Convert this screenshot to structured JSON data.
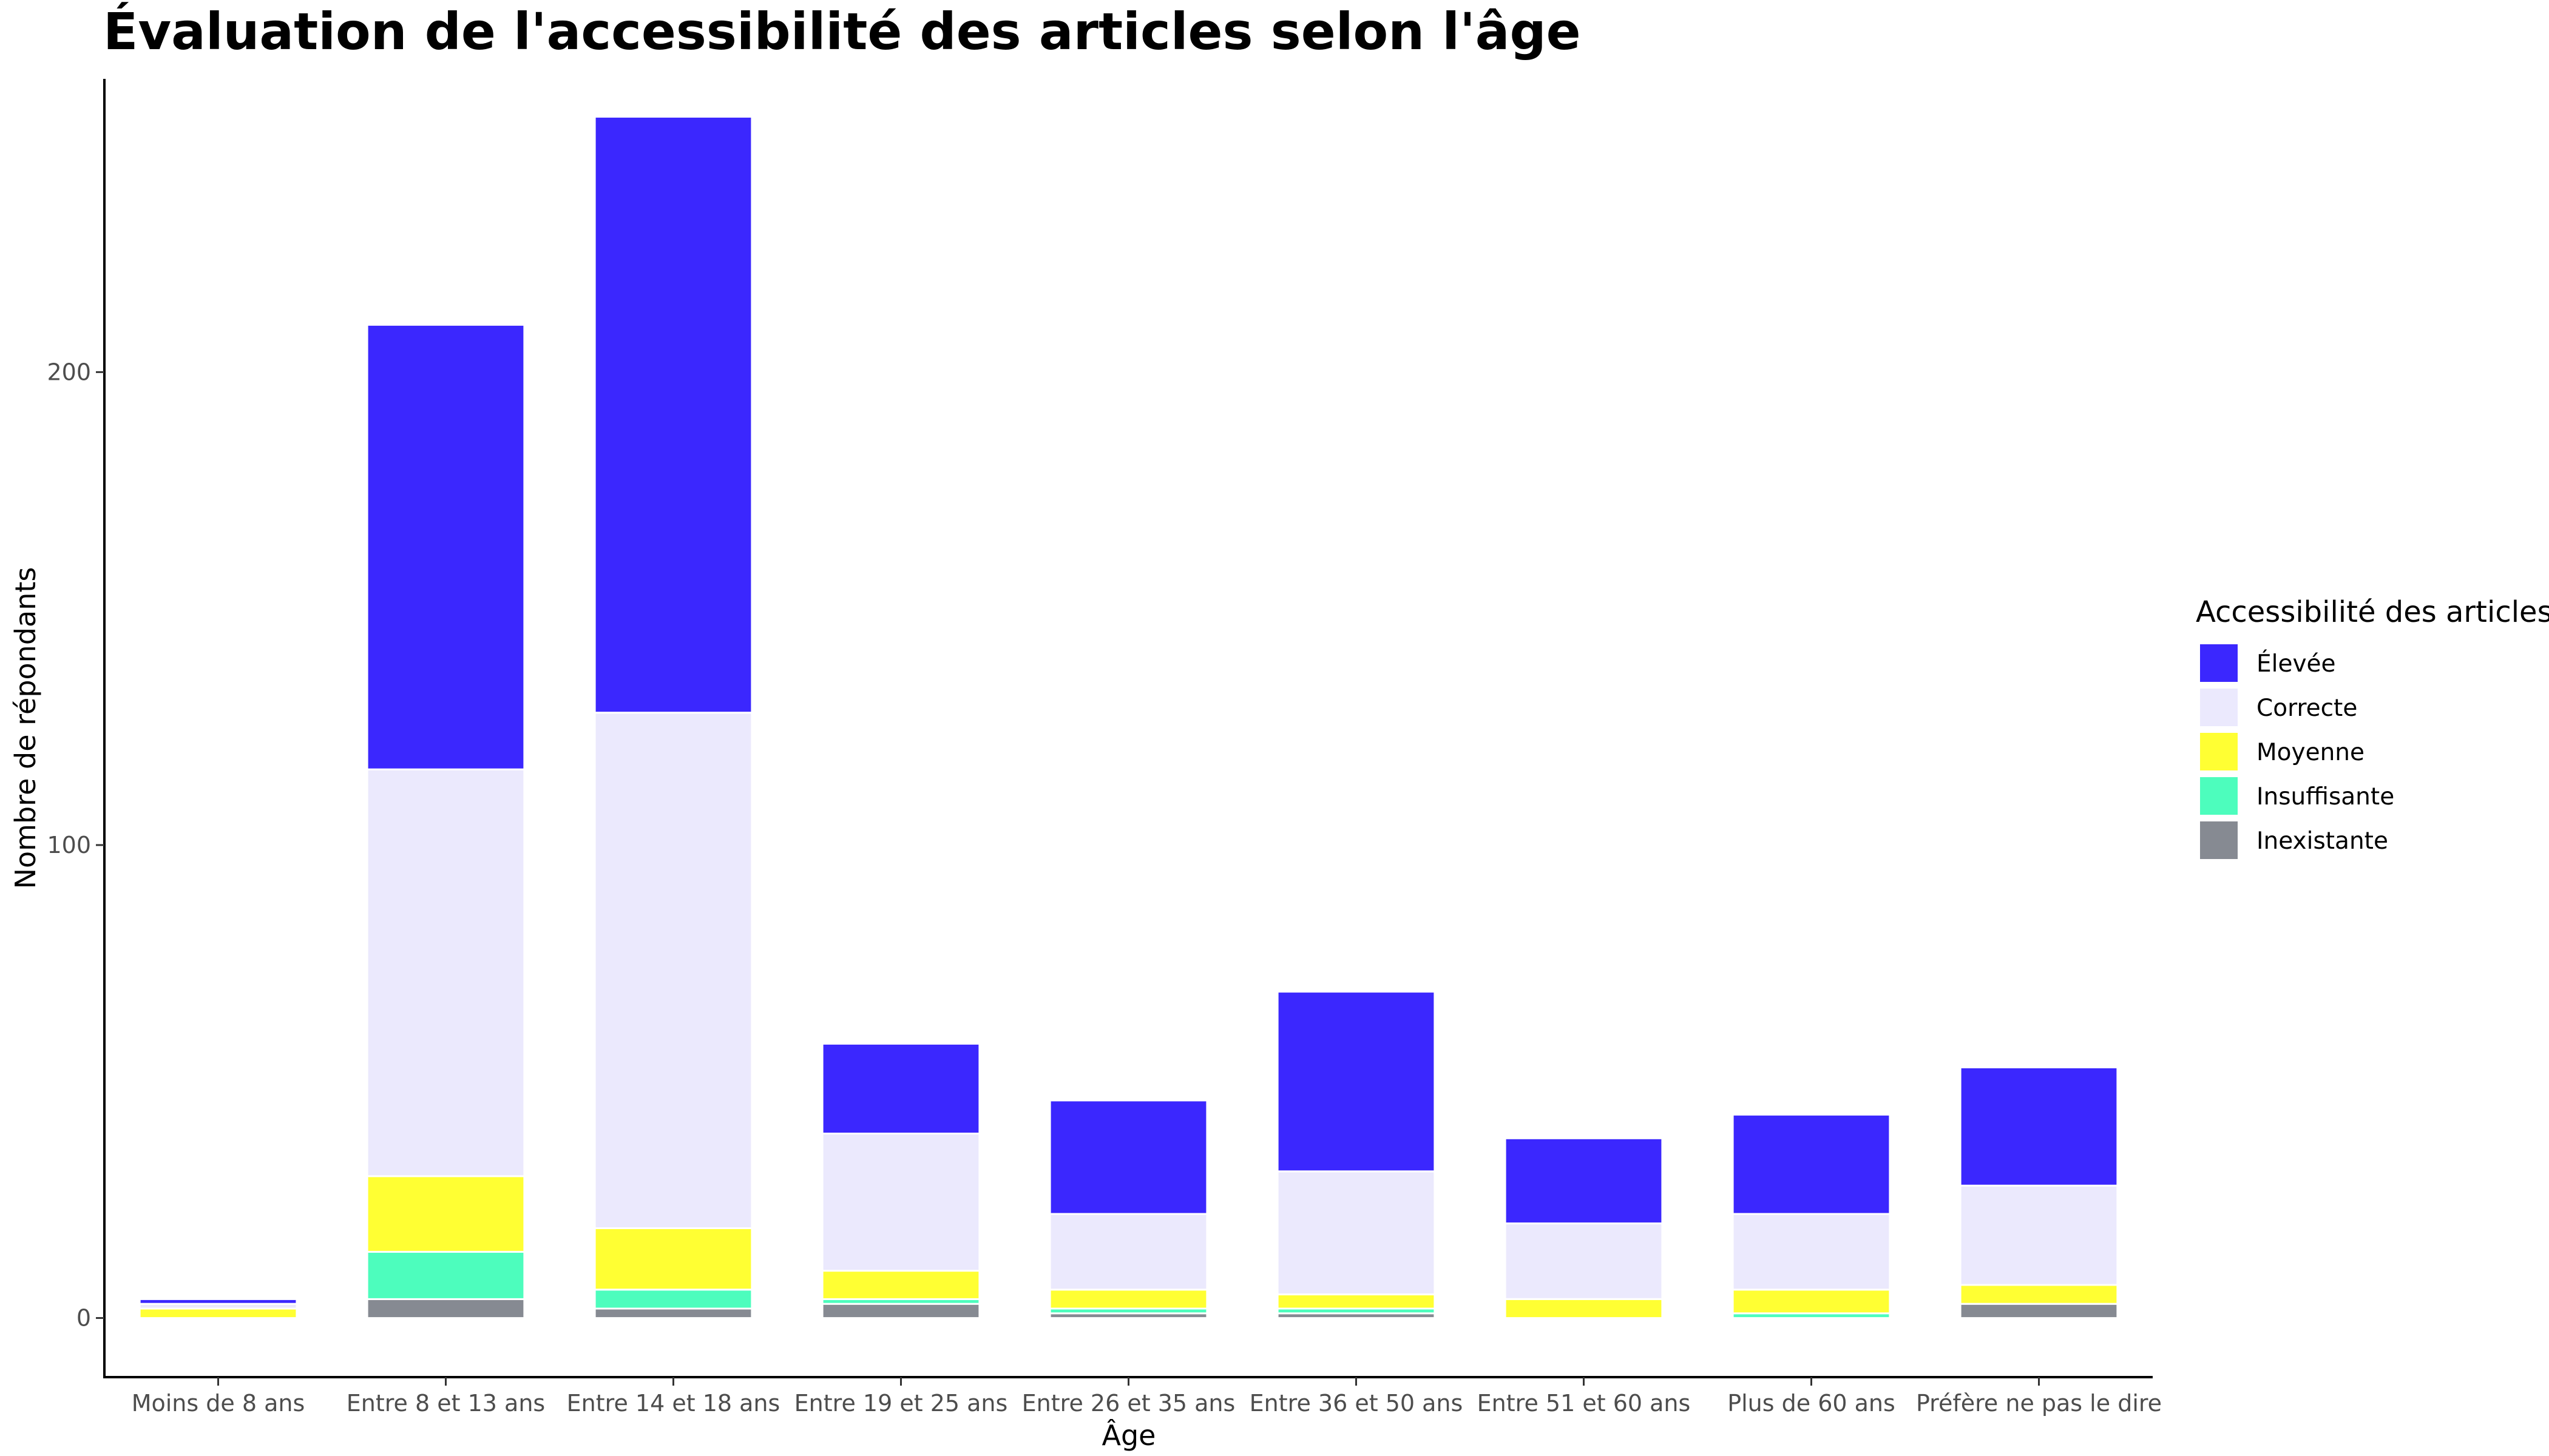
{
  "chart_data": {
    "type": "bar",
    "stacked": true,
    "title": "Évaluation de l'accessibilité des articles selon l'âge",
    "xlabel": "Âge",
    "ylabel": "Nombre de répondants",
    "ylim": [
      -12.5,
      262
    ],
    "yticks": [
      0,
      100,
      200
    ],
    "grid": false,
    "legend_title": "Accessibilité des articles",
    "legend_position": "right",
    "categories": [
      "Moins de 8 ans",
      "Entre 8 et 13 ans",
      "Entre 14 et 18 ans",
      "Entre 19 et 25 ans",
      "Entre 26 et 35 ans",
      "Entre 36 et 50 ans",
      "Entre 51 et 60 ans",
      "Plus de 60 ans",
      "Préfère ne pas le dire"
    ],
    "series": [
      {
        "name": "Inexistante",
        "color": "#868a92",
        "values": [
          0,
          4,
          2,
          3,
          1,
          1,
          0,
          0,
          3
        ]
      },
      {
        "name": "Insuffisante",
        "color": "#4dfdbd",
        "values": [
          0,
          10,
          4,
          1,
          1,
          1,
          0,
          1,
          0
        ]
      },
      {
        "name": "Moyenne",
        "color": "#ffff33",
        "values": [
          2,
          16,
          13,
          6,
          4,
          3,
          4,
          5,
          4
        ]
      },
      {
        "name": "Correcte",
        "color": "#ebe9fd",
        "values": [
          1,
          86,
          109,
          29,
          16,
          26,
          16,
          16,
          21
        ]
      },
      {
        "name": "Élevée",
        "color": "#3b27fe",
        "values": [
          1,
          94,
          126,
          19,
          24,
          38,
          18,
          21,
          25
        ]
      }
    ],
    "legend_order": [
      "Élevée",
      "Correcte",
      "Moyenne",
      "Insuffisante",
      "Inexistante"
    ]
  }
}
